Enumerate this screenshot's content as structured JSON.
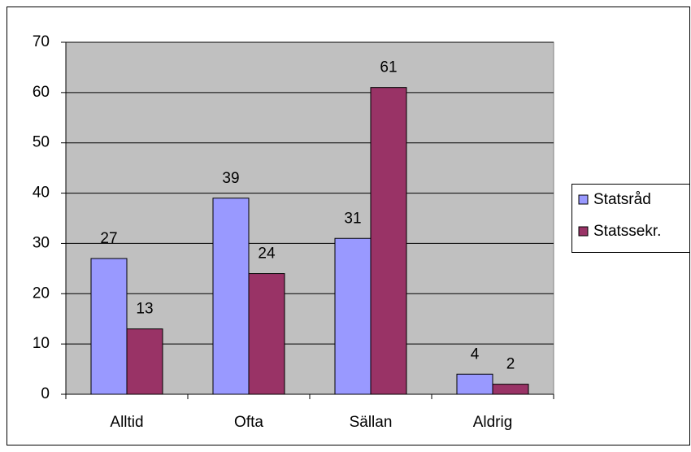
{
  "chart_data": {
    "type": "bar",
    "categories": [
      "Alltid",
      "Ofta",
      "Sällan",
      "Aldrig"
    ],
    "series": [
      {
        "name": "Statsråd",
        "color": "#9999ff",
        "values": [
          27,
          39,
          31,
          4
        ]
      },
      {
        "name": "Statssekr.",
        "color": "#993366",
        "values": [
          13,
          24,
          61,
          2
        ]
      }
    ],
    "ylim": [
      0,
      70
    ],
    "yticks": [
      0,
      10,
      20,
      30,
      40,
      50,
      60,
      70
    ],
    "grid": true,
    "legend": "right"
  }
}
